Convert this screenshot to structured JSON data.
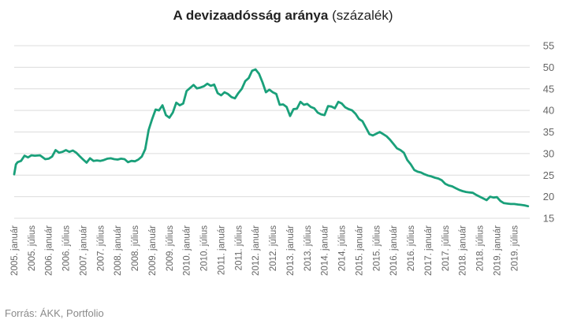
{
  "chart_data": {
    "type": "line",
    "title_bold": "A devizaadósság aránya",
    "title_rest": "(százalék)",
    "source": "Forrás: ÁKK, Portfolio",
    "ylim": [
      15,
      55
    ],
    "yticks": [
      15,
      20,
      25,
      30,
      35,
      40,
      45,
      50,
      55
    ],
    "y_axis_side": "right",
    "grid": "horizontal",
    "line_color": "#1aa07a",
    "x_tick_labels": [
      "2005. január",
      "2005. július",
      "2006. január",
      "2006. július",
      "2007. január",
      "2007. július",
      "2008. január",
      "2008. július",
      "2009. január",
      "2009. július",
      "2010. január",
      "2010. július",
      "2011. január",
      "2011. július",
      "2012. január",
      "2012. július",
      "2013. január",
      "2013. július",
      "2014. január",
      "2014. július",
      "2015. január",
      "2015. július",
      "2016. január",
      "2016. július",
      "2017. január",
      "2017. július",
      "2018. január",
      "2018. július",
      "2019. január",
      "2019. július"
    ],
    "series": [
      {
        "x": [
          2005.0,
          2005.05,
          2005.1,
          2005.2,
          2005.3,
          2005.4,
          2005.5,
          2005.6,
          2005.75,
          2005.9,
          2006.0,
          2006.1,
          2006.2,
          2006.3,
          2006.4,
          2006.5,
          2006.6,
          2006.7,
          2006.8,
          2006.9,
          2007.0,
          2007.1,
          2007.2,
          2007.3,
          2007.4,
          2007.5,
          2007.6,
          2007.7,
          2007.8,
          2007.9,
          2008.0,
          2008.1,
          2008.2,
          2008.3,
          2008.4,
          2008.5,
          2008.6,
          2008.7,
          2008.8,
          2008.9,
          2009.0,
          2009.1,
          2009.2,
          2009.3,
          2009.4,
          2009.5,
          2009.6,
          2009.7,
          2009.8,
          2009.9,
          2010.0,
          2010.1,
          2010.2,
          2010.3,
          2010.4,
          2010.5,
          2010.6,
          2010.7,
          2010.8,
          2010.9,
          2011.0,
          2011.1,
          2011.2,
          2011.3,
          2011.4,
          2011.5,
          2011.6,
          2011.7,
          2011.8,
          2011.9,
          2012.0,
          2012.1,
          2012.2,
          2012.3,
          2012.4,
          2012.5,
          2012.6,
          2012.7,
          2012.8,
          2012.9,
          2013.0,
          2013.1,
          2013.2,
          2013.3,
          2013.4,
          2013.5,
          2013.6,
          2013.7,
          2013.8,
          2013.9,
          2014.0,
          2014.1,
          2014.2,
          2014.3,
          2014.4,
          2014.5,
          2014.6,
          2014.7,
          2014.8,
          2014.9,
          2015.0,
          2015.1,
          2015.2,
          2015.3,
          2015.4,
          2015.5,
          2015.6,
          2015.7,
          2015.8,
          2015.9,
          2016.0,
          2016.1,
          2016.2,
          2016.3,
          2016.4,
          2016.5,
          2016.6,
          2016.7,
          2016.8,
          2016.9,
          2017.0,
          2017.1,
          2017.2,
          2017.3,
          2017.4,
          2017.5,
          2017.6,
          2017.7,
          2017.8,
          2017.9,
          2018.0,
          2018.1,
          2018.2,
          2018.3,
          2018.4,
          2018.5,
          2018.6,
          2018.7,
          2018.8,
          2018.9,
          2019.0,
          2019.1,
          2019.2,
          2019.3,
          2019.4,
          2019.5,
          2019.6,
          2019.7,
          2019.8,
          2019.9
        ],
        "values": [
          25.2,
          27.5,
          28.0,
          28.3,
          29.5,
          29.1,
          29.6,
          29.5,
          29.6,
          28.7,
          28.8,
          29.3,
          30.8,
          30.2,
          30.4,
          30.8,
          30.4,
          30.7,
          30.2,
          29.4,
          28.6,
          27.9,
          28.9,
          28.3,
          28.4,
          28.3,
          28.5,
          28.8,
          28.9,
          28.7,
          28.6,
          28.8,
          28.7,
          28.0,
          28.3,
          28.2,
          28.6,
          29.3,
          31.0,
          35.5,
          38.0,
          40.2,
          40.0,
          41.2,
          38.9,
          38.3,
          39.5,
          41.8,
          41.2,
          41.6,
          44.5,
          45.2,
          45.9,
          45.1,
          45.3,
          45.6,
          46.2,
          45.7,
          46.0,
          44.0,
          43.5,
          44.2,
          43.8,
          43.1,
          42.8,
          44.0,
          45.0,
          46.8,
          47.5,
          49.2,
          49.5,
          48.5,
          46.5,
          44.2,
          44.8,
          44.2,
          43.8,
          41.3,
          41.4,
          40.8,
          38.7,
          40.3,
          40.4,
          42.0,
          41.3,
          41.5,
          40.8,
          40.5,
          39.5,
          39.1,
          38.9,
          41.0,
          40.9,
          40.5,
          42.0,
          41.6,
          40.7,
          40.3,
          40.0,
          39.2,
          38.0,
          37.5,
          36.0,
          34.5,
          34.2,
          34.6,
          35.0,
          34.5,
          34.0,
          33.2,
          32.2,
          31.2,
          30.8,
          30.2,
          28.5,
          27.5,
          26.2,
          25.8,
          25.6,
          25.2,
          24.9,
          24.7,
          24.4,
          24.2,
          23.8,
          23.0,
          22.6,
          22.4,
          22.0,
          21.6,
          21.3,
          21.1,
          21.0,
          20.9,
          20.4,
          20.0,
          19.6,
          19.2,
          20.0,
          19.8,
          19.9,
          19.0,
          18.5,
          18.4,
          18.3,
          18.3,
          18.2,
          18.1,
          18.0,
          17.8
        ]
      }
    ]
  }
}
